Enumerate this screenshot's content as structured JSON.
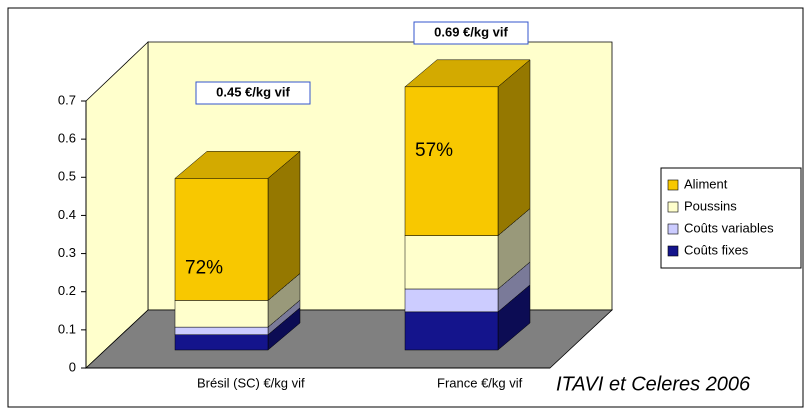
{
  "chart_data": {
    "type": "bar3d_stacked",
    "categories": [
      "Brésil (SC) €/kg vif",
      "France  €/kg vif"
    ],
    "series": [
      {
        "name": "Coûts fixes",
        "color": "#14148c",
        "values": [
          0.04,
          0.1
        ]
      },
      {
        "name": "Coûts variables",
        "color": "#ccccff",
        "values": [
          0.02,
          0.06
        ]
      },
      {
        "name": "Poussins",
        "color": "#ffffcc",
        "values": [
          0.07,
          0.14
        ]
      },
      {
        "name": "Aliment",
        "color": "#f8c800",
        "values": [
          0.32,
          0.39
        ]
      }
    ],
    "total_labels": [
      "0.45 €/kg vif",
      "0.69 €/kg vif"
    ],
    "share_labels": [
      "72%",
      "57%"
    ],
    "source": "ITAVI et Celeres 2006",
    "ylim": [
      0,
      0.7
    ],
    "yticks": [
      0,
      0.1,
      0.2,
      0.3,
      0.4,
      0.5,
      0.6,
      0.7
    ],
    "legend": "right"
  }
}
